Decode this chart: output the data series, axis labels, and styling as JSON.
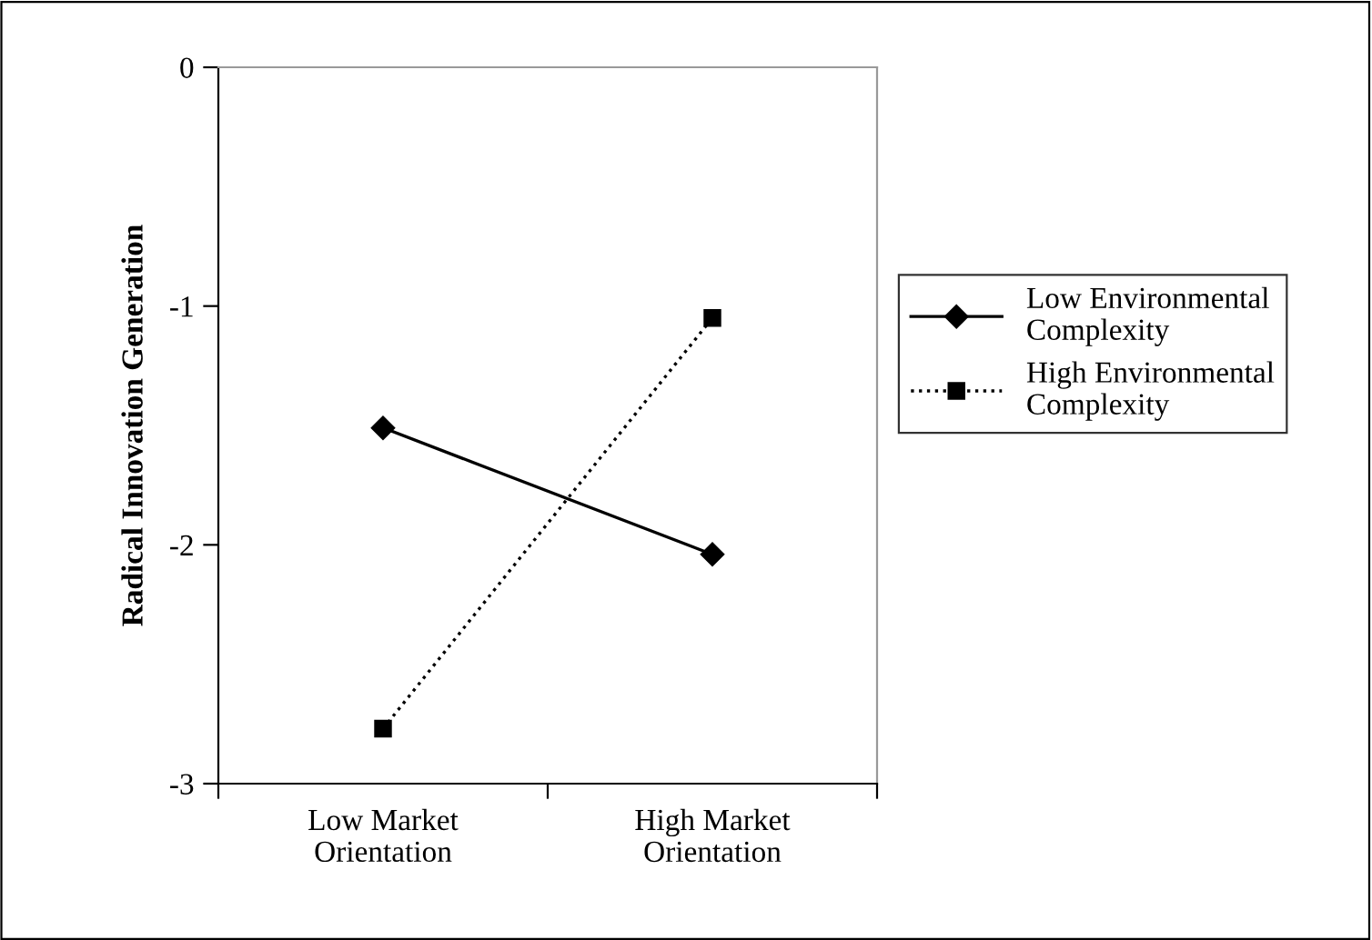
{
  "chart_data": {
    "type": "line",
    "ylabel": "Radical Innovation Generation",
    "categories": [
      "Low Market\nOrientation",
      "High Market\nOrientation"
    ],
    "series": [
      {
        "name": "Low Environmental\nComplexity",
        "color": "#000000",
        "values": [
          -1.51,
          -2.04
        ],
        "marker": "diamond",
        "line_style": "solid"
      },
      {
        "name": "High Environmental\nComplexity",
        "color": "#000000",
        "values": [
          -2.77,
          -1.05
        ],
        "marker": "square",
        "line_style": "dotted"
      }
    ],
    "ylim": [
      -3,
      0
    ],
    "yticks": [
      -3,
      -2,
      -1,
      0
    ],
    "grid": false,
    "legend": "right"
  }
}
